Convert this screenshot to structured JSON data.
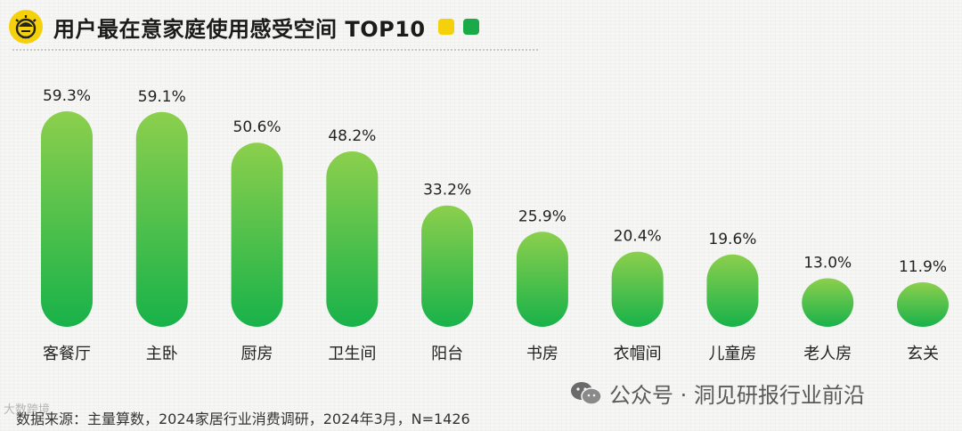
{
  "header": {
    "title": "用户最在意家庭使用感受空间 TOP10",
    "logo_icon": "lightbulb-face-icon",
    "accent_yellow": "#f5d10b",
    "accent_green": "#1aab48"
  },
  "chart_data": {
    "type": "bar",
    "title": "用户最在意家庭使用感受空间 TOP10",
    "categories": [
      "客餐厅",
      "主卧",
      "厨房",
      "卫生间",
      "阳台",
      "书房",
      "衣帽间",
      "儿童房",
      "老人房",
      "玄关"
    ],
    "values": [
      59.3,
      59.1,
      50.6,
      48.2,
      33.2,
      25.9,
      20.4,
      19.6,
      13.0,
      11.9
    ],
    "value_labels": [
      "59.3%",
      "59.1%",
      "50.6%",
      "48.2%",
      "33.2%",
      "25.9%",
      "20.4%",
      "19.6%",
      "13.0%",
      "11.9%"
    ],
    "unit": "%",
    "xlabel": "",
    "ylabel": "",
    "ylim": [
      0,
      60
    ],
    "grid": false,
    "legend": "none",
    "bar_color_top": "#8ccf4d",
    "bar_color_bottom": "#18b24a"
  },
  "footer": {
    "source": "数据来源：主量算数，2024家居行业消费调研，2024年3月，N=1426",
    "watermark": "公众号 · 洞见研报行业前沿",
    "watermark_icon": "wechat-icon",
    "corner_mark": "大数跨境"
  }
}
